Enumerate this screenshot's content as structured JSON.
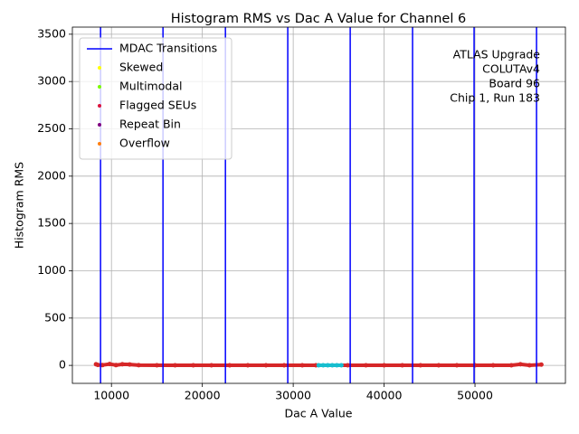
{
  "chart_data": {
    "type": "scatter",
    "title": "Histogram RMS vs Dac A Value for Channel 6",
    "x_label": "Dac A Value",
    "y_label": "Histogram RMS",
    "xlim": [
      5700,
      59950
    ],
    "ylim": [
      -190,
      3575
    ],
    "xticks": [
      10000,
      20000,
      30000,
      40000,
      50000
    ],
    "yticks": [
      0,
      500,
      1000,
      1500,
      2000,
      2500,
      3000,
      3500
    ],
    "grid": true,
    "legend": "upper left",
    "annotation": [
      "ATLAS Upgrade",
      "COLUTAv4",
      "Board 96",
      "Chip 1, Run 183"
    ],
    "mdac_transitions": {
      "name": "MDAC Transitions",
      "color": "#0000ff",
      "x": [
        8800,
        15670,
        22540,
        29400,
        36270,
        43130,
        49900,
        56770
      ]
    },
    "series": [
      {
        "name": "Skewed",
        "color": "#ffff00",
        "x": [],
        "values": []
      },
      {
        "name": "Multimodal",
        "color": "#7cfc00",
        "x": [],
        "values": []
      },
      {
        "name": "Flagged SEUs",
        "color": "#dc143c",
        "x": [],
        "values": []
      },
      {
        "name": "Repeat Bin",
        "color": "#800080",
        "x": [],
        "values": []
      },
      {
        "name": "Overflow",
        "color": "#ff7f0e",
        "x": [],
        "values": []
      }
    ],
    "points": [
      {
        "color": "#d62728",
        "x": [
          8300,
          8500,
          9000,
          9800,
          10500,
          11200,
          12000,
          13000,
          15000,
          17000,
          19000,
          21000,
          23000,
          25000,
          27000,
          29000,
          31000,
          32500,
          36000,
          38000,
          40000,
          42000,
          44000,
          46000,
          48000,
          50000,
          52000,
          54000,
          55000,
          56000,
          57300
        ],
        "values": [
          12,
          5,
          3,
          14,
          3,
          12,
          10,
          2,
          1,
          1,
          1,
          1,
          1,
          1,
          1,
          1,
          1,
          1,
          1,
          1,
          1,
          1,
          1,
          1,
          1,
          1,
          1,
          1,
          12,
          1,
          8
        ]
      },
      {
        "color": "#17becf",
        "x": [
          32800,
          33300,
          33800,
          34300,
          34800,
          35300
        ],
        "values": [
          1,
          1,
          1,
          1,
          1,
          1
        ]
      }
    ]
  }
}
